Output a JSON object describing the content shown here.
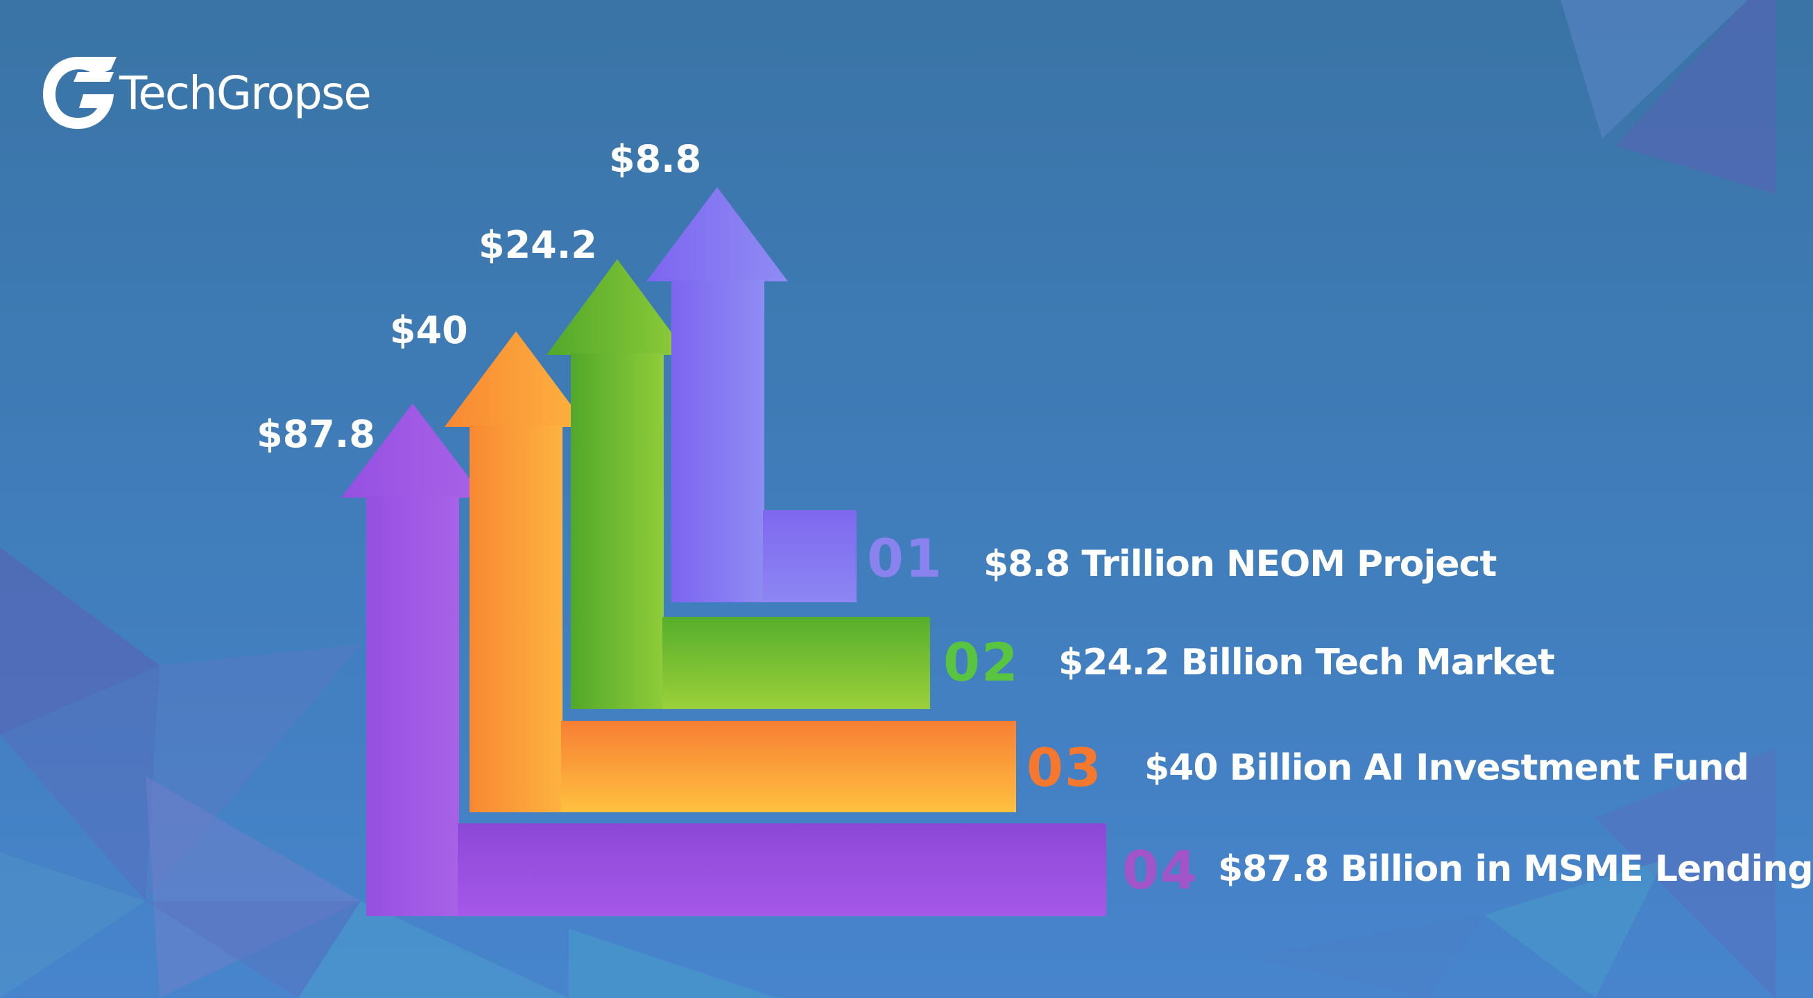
{
  "brand": {
    "name": "TechGropse",
    "logo_icon": "g-logo-icon"
  },
  "colors": {
    "purple_light": "#8a7ef2",
    "green": "#7cc53a",
    "orange": "#fca540",
    "purple": "#9a55e6",
    "number_purple_light": "#8a82ee",
    "number_green": "#58c440",
    "number_orange": "#f5782e",
    "number_purple": "#a354c6"
  },
  "items": [
    {
      "value_label": "$8.8",
      "number": "01",
      "text": "$8.8 Trillion NEOM Project"
    },
    {
      "value_label": "$24.2",
      "number": "02",
      "text": "$24.2 Billion Tech Market"
    },
    {
      "value_label": "$40",
      "number": "03",
      "text": "$40 Billion AI Investment Fund"
    },
    {
      "value_label": "$87.8",
      "number": "04",
      "text": "$87.8 Billion in MSME Lending"
    }
  ]
}
